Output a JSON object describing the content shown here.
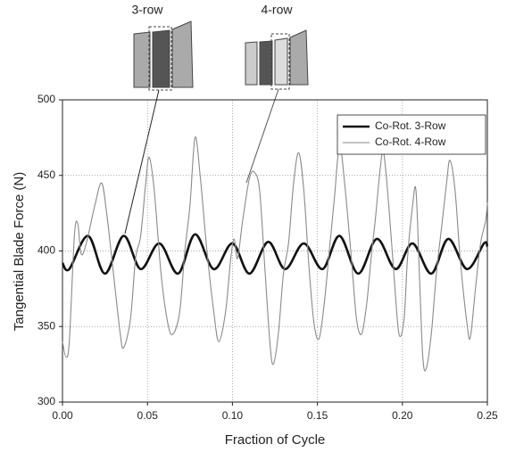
{
  "chart_data": {
    "type": "line",
    "x_label": "Fraction of Cycle",
    "y_label": "Tangential Blade Force (N)",
    "annotations": [
      "3-row",
      "4-row"
    ],
    "xlim": [
      0,
      0.25
    ],
    "ylim": [
      300,
      500
    ],
    "xticks": [
      {
        "value": 0,
        "label": "0.00"
      },
      {
        "value": 0.05,
        "label": "0.05"
      },
      {
        "value": 0.1,
        "label": "0.10"
      },
      {
        "value": 0.15,
        "label": "0.15"
      },
      {
        "value": 0.2,
        "label": "0.20"
      },
      {
        "value": 0.25,
        "label": "0.25"
      }
    ],
    "yticks": [
      300,
      350,
      400,
      450,
      500
    ],
    "grid": true,
    "legend": "upper right",
    "series": [
      {
        "name": "Co-Rot. 3-Row",
        "color": "#111111",
        "x": [
          0,
          0.004,
          0.015,
          0.025,
          0.036,
          0.046,
          0.057,
          0.068,
          0.078,
          0.089,
          0.1,
          0.11,
          0.121,
          0.131,
          0.142,
          0.153,
          0.163,
          0.174,
          0.185,
          0.196,
          0.206,
          0.217,
          0.227,
          0.238,
          0.248,
          0.25
        ],
        "values": [
          392,
          388,
          410,
          385,
          410,
          388,
          405,
          385,
          411,
          388,
          405,
          385,
          406,
          388,
          405,
          388,
          410,
          385,
          408,
          388,
          405,
          385,
          408,
          388,
          405,
          403
        ]
      },
      {
        "name": "Co-Rot. 4-Row",
        "color": "#8a8a8a",
        "x": [
          0,
          0.002,
          0.004,
          0.007,
          0.009,
          0.011,
          0.014,
          0.019,
          0.023,
          0.026,
          0.03,
          0.034,
          0.036,
          0.04,
          0.043,
          0.046,
          0.049,
          0.051,
          0.054,
          0.058,
          0.062,
          0.065,
          0.069,
          0.072,
          0.075,
          0.078,
          0.081,
          0.085,
          0.089,
          0.092,
          0.096,
          0.099,
          0.101,
          0.103,
          0.106,
          0.11,
          0.113,
          0.116,
          0.119,
          0.122,
          0.124,
          0.127,
          0.13,
          0.133,
          0.136,
          0.139,
          0.142,
          0.145,
          0.148,
          0.151,
          0.154,
          0.157,
          0.16,
          0.163,
          0.166,
          0.17,
          0.173,
          0.176,
          0.179,
          0.182,
          0.184,
          0.187,
          0.189,
          0.192,
          0.195,
          0.198,
          0.201,
          0.203,
          0.206,
          0.208,
          0.21,
          0.212,
          0.214,
          0.217,
          0.22,
          0.223,
          0.226,
          0.228,
          0.231,
          0.234,
          0.238,
          0.24,
          0.243,
          0.246,
          0.249,
          0.25
        ],
        "values": [
          340,
          330,
          340,
          410,
          418,
          398,
          405,
          430,
          445,
          425,
          385,
          345,
          336,
          355,
          395,
          410,
          445,
          462,
          440,
          385,
          352,
          345,
          360,
          400,
          430,
          475,
          450,
          400,
          360,
          340,
          360,
          395,
          408,
          395,
          420,
          448,
          452,
          440,
          390,
          340,
          325,
          345,
          385,
          405,
          445,
          465,
          440,
          390,
          352,
          342,
          365,
          400,
          435,
          470,
          445,
          395,
          355,
          345,
          365,
          400,
          420,
          455,
          465,
          430,
          385,
          345,
          355,
          395,
          430,
          440,
          385,
          330,
          322,
          345,
          385,
          415,
          445,
          460,
          440,
          395,
          352,
          343,
          375,
          405,
          420,
          432
        ]
      }
    ]
  }
}
